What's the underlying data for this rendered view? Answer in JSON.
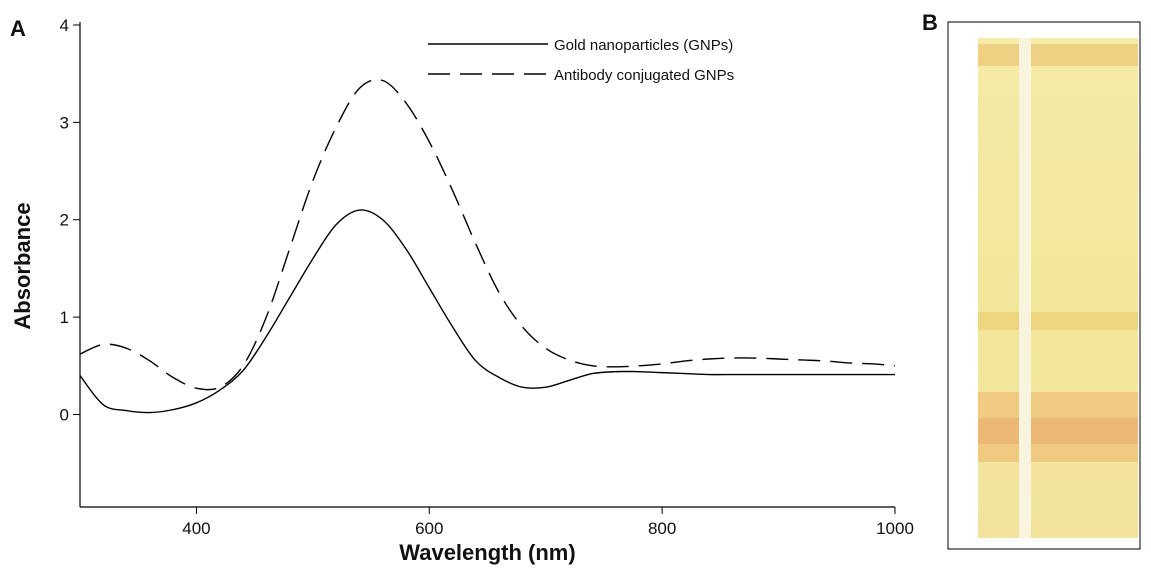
{
  "panel_a_label": "A",
  "panel_b_label": "B",
  "chart_data": {
    "type": "line",
    "x_label": "Wavelength (nm)",
    "y_label": "Absorbance",
    "x": [
      300,
      320,
      340,
      360,
      380,
      400,
      420,
      440,
      460,
      480,
      500,
      520,
      540,
      560,
      580,
      600,
      620,
      640,
      660,
      680,
      700,
      720,
      740,
      760,
      780,
      800,
      820,
      840,
      860,
      880,
      900,
      920,
      940,
      960,
      980,
      1000
    ],
    "series": [
      {
        "name": "Gold nanoparticles (GNPs)",
        "color": "#000000",
        "style": "solid",
        "values": [
          0.4,
          0.1,
          0.04,
          0.02,
          0.05,
          0.12,
          0.25,
          0.45,
          0.8,
          1.2,
          1.6,
          1.95,
          2.1,
          2.0,
          1.7,
          1.3,
          0.9,
          0.55,
          0.38,
          0.28,
          0.28,
          0.35,
          0.42,
          0.44,
          0.44,
          0.43,
          0.42,
          0.41,
          0.41,
          0.41,
          0.41,
          0.41,
          0.41,
          0.41,
          0.41,
          0.41
        ]
      },
      {
        "name": "Antibody conjugated GNPs",
        "color": "#000000",
        "style": "dashed",
        "values": [
          0.62,
          0.72,
          0.68,
          0.55,
          0.38,
          0.27,
          0.28,
          0.5,
          1.0,
          1.7,
          2.4,
          2.95,
          3.35,
          3.43,
          3.2,
          2.8,
          2.3,
          1.75,
          1.25,
          0.9,
          0.68,
          0.56,
          0.5,
          0.49,
          0.5,
          0.52,
          0.55,
          0.57,
          0.58,
          0.58,
          0.57,
          0.56,
          0.55,
          0.53,
          0.52,
          0.5
        ]
      }
    ],
    "xlim": [
      300,
      1000
    ],
    "ylim": [
      -0.95,
      4
    ],
    "xticks": [
      400,
      600,
      800,
      1000
    ],
    "yticks": [
      0,
      1,
      2,
      3,
      4
    ],
    "legend": "upper right"
  }
}
